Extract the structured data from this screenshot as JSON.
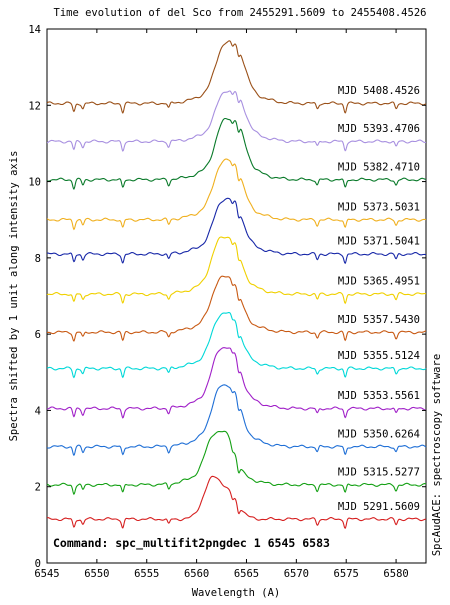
{
  "chart_data": {
    "type": "line",
    "title": "Time evolution of del Sco  from 2455291.5609 to 2455408.4526",
    "xlabel": "Wavelength (A)",
    "ylabel": "Spectra shifted by 1 unit along intensity axis",
    "right_label": "SpcAudACE: spectroscopy software",
    "command": "Command: spc_multifit2pngdec 1 6545 6583",
    "xlim": [
      6545,
      6583
    ],
    "ylim": [
      0,
      14
    ],
    "x_ticks": [
      6545,
      6550,
      6555,
      6560,
      6565,
      6570,
      6575,
      6580
    ],
    "x_tick_labels": [
      "6545",
      "6550",
      "6555",
      "6560",
      "6565",
      "6570",
      "6575",
      "6580"
    ],
    "y_ticks": [
      0,
      2,
      4,
      6,
      8,
      10,
      12,
      14
    ],
    "y_tick_labels": [
      "0",
      "2",
      "4",
      "6",
      "8",
      "10",
      "12",
      "14"
    ],
    "grid": false,
    "telluric_lines": [
      6547.7,
      6548.6,
      6552.6,
      6557.2,
      6564.2,
      6572.1,
      6574.9,
      6580.0
    ],
    "series": [
      {
        "name": "MJD 5291.5609",
        "color": "#d62020",
        "baseline": 1.15,
        "peak_height": 1.25,
        "peak_center": 6561.6,
        "profile": "single-peak"
      },
      {
        "name": "MJD 5315.5277",
        "color": "#14a014",
        "baseline": 2.05,
        "peak_height": 1.3,
        "peak_center": 6562.0,
        "profile": "double-peak"
      },
      {
        "name": "MJD 5350.6264",
        "color": "#1f6fd6",
        "baseline": 3.05,
        "peak_height": 1.5,
        "peak_center": 6562.6,
        "profile": "double-peak"
      },
      {
        "name": "MJD 5353.5561",
        "color": "#a020c8",
        "baseline": 4.05,
        "peak_height": 1.5,
        "peak_center": 6562.6,
        "profile": "double-peak"
      },
      {
        "name": "MJD 5355.5124",
        "color": "#00d8d8",
        "baseline": 5.1,
        "peak_height": 1.35,
        "peak_center": 6562.6,
        "profile": "double-peak"
      },
      {
        "name": "MJD 5357.5430",
        "color": "#c85a14",
        "baseline": 6.05,
        "peak_height": 1.35,
        "peak_center": 6562.6,
        "profile": "double-peak"
      },
      {
        "name": "MJD 5365.4951",
        "color": "#f0d000",
        "baseline": 7.05,
        "peak_height": 1.4,
        "peak_center": 6562.6,
        "profile": "double-peak"
      },
      {
        "name": "MJD 5371.5041",
        "color": "#1828a8",
        "baseline": 8.1,
        "peak_height": 1.35,
        "peak_center": 6562.8,
        "profile": "double-peak"
      },
      {
        "name": "MJD 5373.5031",
        "color": "#f0b020",
        "baseline": 9.0,
        "peak_height": 1.45,
        "peak_center": 6562.8,
        "profile": "double-peak"
      },
      {
        "name": "MJD 5382.4710",
        "color": "#0a7a2a",
        "baseline": 10.05,
        "peak_height": 1.5,
        "peak_center": 6563.0,
        "profile": "double-peak"
      },
      {
        "name": "MJD 5393.4706",
        "color": "#a890e0",
        "baseline": 11.05,
        "peak_height": 1.25,
        "peak_center": 6563.0,
        "profile": "double-peak"
      },
      {
        "name": "MJD 5408.4526",
        "color": "#9a5018",
        "baseline": 12.05,
        "peak_height": 1.5,
        "peak_center": 6563.0,
        "profile": "double-peak"
      }
    ]
  }
}
